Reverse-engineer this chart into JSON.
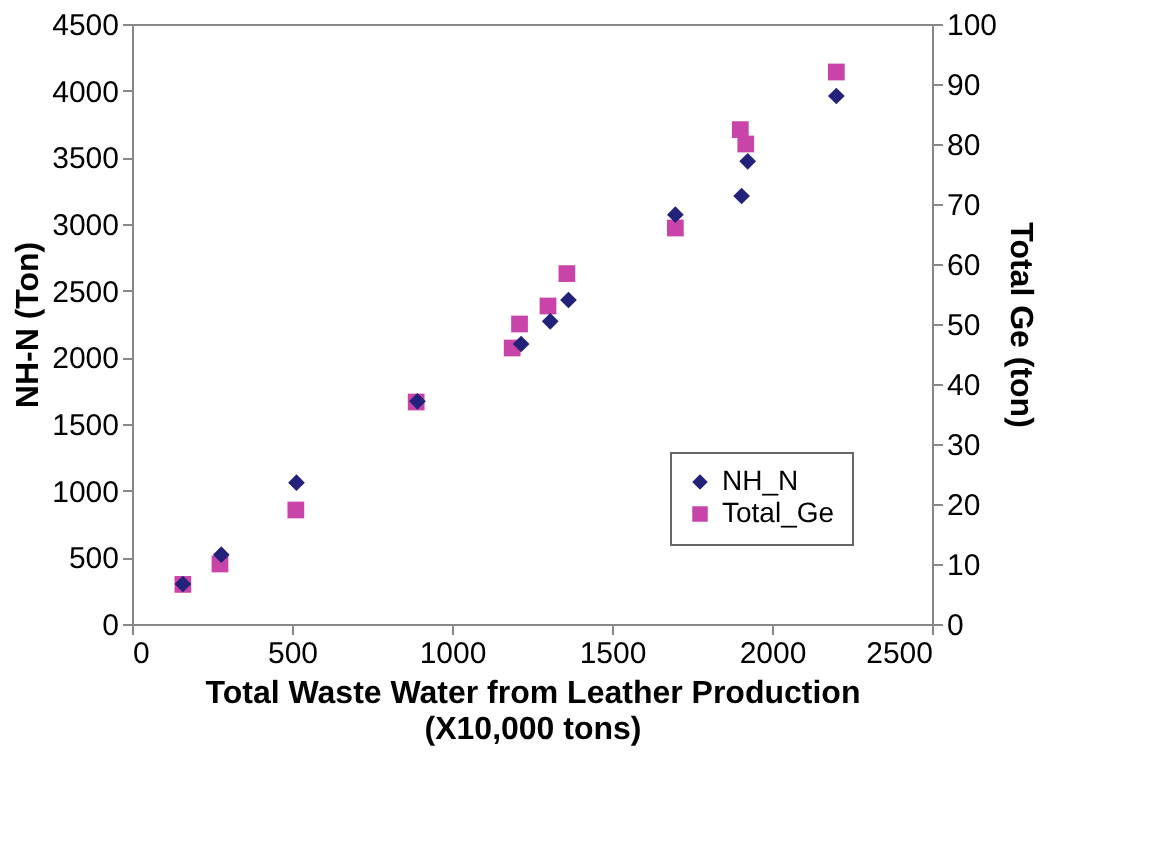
{
  "chart_data": {
    "type": "scatter",
    "xlabel": "Total Waste Water from Leather Production\n(X10,000 tons)",
    "ylabel": "NH-N (Ton)",
    "y2label": "Total Ge (ton)",
    "xlim": [
      0,
      2500
    ],
    "xticks": [
      0,
      500,
      1000,
      1500,
      2000,
      2500
    ],
    "ylim": [
      0,
      4500
    ],
    "yticks": [
      0,
      500,
      1000,
      1500,
      2000,
      2500,
      3000,
      3500,
      4000,
      4500
    ],
    "y2lim": [
      0,
      100
    ],
    "y2ticks": [
      0,
      10,
      20,
      30,
      40,
      50,
      60,
      70,
      80,
      90,
      100
    ],
    "grid": false,
    "legend": "bottom right",
    "series": [
      {
        "name": "NH_N",
        "color": "#22227a",
        "marker": "diamond",
        "x": [
          159,
          279,
          514,
          892,
          1216,
          1307,
          1364,
          1698,
          1905,
          1924,
          2201
        ],
        "values": [
          300,
          520,
          1060,
          1670,
          2100,
          2270,
          2430,
          3070,
          3210,
          3470,
          3960
        ]
      },
      {
        "name": "Total_Ge",
        "color": "#c944a8",
        "marker": "square",
        "axis": "y2",
        "x": [
          159,
          275,
          512,
          888,
          1188,
          1211,
          1300,
          1359,
          1698,
          1901,
          1918,
          2201
        ],
        "values": [
          6.6,
          10,
          19,
          37,
          46,
          50,
          53,
          58.4,
          66,
          82.4,
          80,
          92
        ]
      }
    ]
  }
}
